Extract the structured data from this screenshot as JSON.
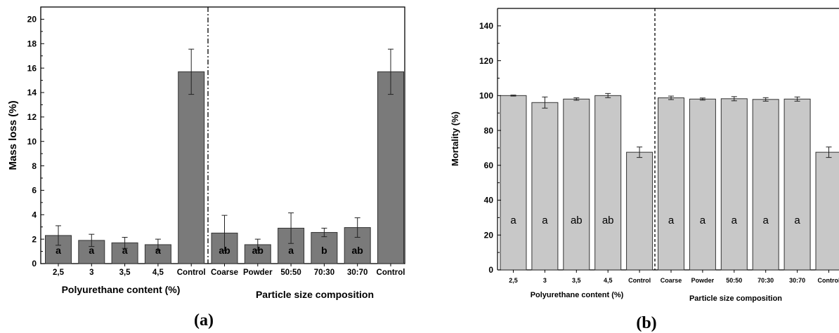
{
  "chart_data": [
    {
      "type": "bar",
      "panel_label": "(a)",
      "ylabel": "Mass loss (%)",
      "ylim": [
        0,
        21
      ],
      "yticks": [
        0,
        2,
        4,
        6,
        8,
        10,
        12,
        14,
        16,
        18,
        20
      ],
      "grid": false,
      "categories": [
        "2,5",
        "3",
        "3,5",
        "4,5",
        "Control",
        "Coarse",
        "Powder",
        "50:50",
        "70:30",
        "30:70",
        "Control"
      ],
      "values": [
        2.3,
        1.9,
        1.7,
        1.55,
        15.7,
        2.5,
        1.55,
        2.9,
        2.55,
        2.95,
        15.7
      ],
      "errors": [
        0.8,
        0.5,
        0.45,
        0.45,
        1.85,
        1.45,
        0.45,
        1.25,
        0.35,
        0.8,
        1.85
      ],
      "letters": [
        "a",
        "a",
        "a",
        "a",
        "",
        "ab",
        "ab",
        "a",
        "b",
        "ab",
        ""
      ],
      "group_labels": [
        "Polyurethane content (%)",
        "Particle size composition"
      ],
      "bar_color": "#7a7a7a"
    },
    {
      "type": "bar",
      "panel_label": "(b)",
      "ylabel": "Mortality (%)",
      "ylim": [
        0,
        150
      ],
      "yticks": [
        0,
        20,
        40,
        60,
        80,
        100,
        120,
        140
      ],
      "grid": false,
      "categories": [
        "2,5",
        "3",
        "3,5",
        "4,5",
        "Control",
        "Coarse",
        "Powder",
        "50:50",
        "70:30",
        "30:70",
        "Control"
      ],
      "values": [
        100,
        96,
        98,
        100,
        67.5,
        98.7,
        98,
        98.2,
        97.8,
        98,
        67.5
      ],
      "errors": [
        0.3,
        3.2,
        0.7,
        1.2,
        3.0,
        1.0,
        0.6,
        1.2,
        1.0,
        1.2,
        3.0
      ],
      "letters": [
        "a",
        "a",
        "ab",
        "ab",
        "",
        "a",
        "a",
        "a",
        "a",
        "a",
        ""
      ],
      "group_labels": [
        "Polyurethane content (%)",
        "Particle size composition"
      ],
      "bar_color": "#c8c8c8"
    }
  ]
}
